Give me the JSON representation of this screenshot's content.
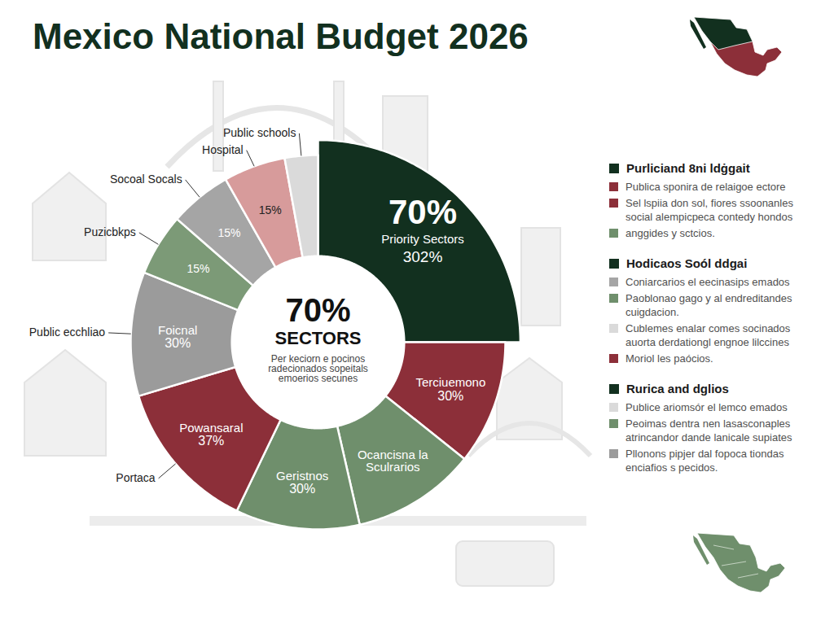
{
  "chart_data": {
    "type": "pie",
    "title": "Mexico National Budget 2026",
    "categories": [
      "Priority Sectors",
      "Terciuemono",
      "Ocancisna la Sculrarios",
      "Geristnos",
      "Powansaral",
      "Foicnal",
      null,
      null,
      null,
      null
    ],
    "values": [
      70,
      30,
      30,
      30,
      37,
      30,
      15,
      15,
      15,
      8
    ],
    "value_labels": [
      "70%",
      "30%",
      null,
      "30%",
      "37%",
      "30%",
      "15%",
      "15%",
      "15%",
      null
    ],
    "secondary_labels": [
      "302%",
      null,
      null,
      null,
      null,
      null,
      null,
      null,
      null,
      null
    ],
    "callouts": [
      null,
      null,
      null,
      null,
      "Portaca",
      "Public ecchliao",
      "Puzicbkps",
      "Socoal Socals",
      "Hospital",
      "Public schools"
    ],
    "colors": [
      "#12301f",
      "#8c2f39",
      "#6f8f6c",
      "#6f8f6c",
      "#8c2f39",
      "#9b9b9b",
      "#7c9a77",
      "#a5a5a5",
      "#d79b9b",
      "#dadada"
    ],
    "data_labels": true,
    "center_text": {
      "value": "70%",
      "label": "SECTORS",
      "note": "Per keciorn e pocinos radecionados sopeitals emoerios secunes"
    },
    "legend": "right",
    "legend_groups": [
      {
        "title": "Purliciand 8ni ldġgait",
        "color": "#12301f",
        "items": [
          {
            "text": "Publica sponira de relaigoe ectore",
            "color": "#8c2f39"
          },
          {
            "text": "Sel lspiia don sol, fiores ssoonanles social alempicpeca contedy hondos",
            "color": "#8c2f39"
          },
          {
            "text": "anggides y sctcios.",
            "color": "#6f8f6c"
          }
        ]
      },
      {
        "title": "Hodicaos Soól ddgai",
        "color": "#12301f",
        "items": [
          {
            "text": "Coniarcarios el eecinasips emados",
            "color": "#a5a5a5"
          },
          {
            "text": "Paoblonao gago y al endreditandes cuigdacion.",
            "color": "#6f8f6c"
          },
          {
            "text": "Cublemes enalar comes socinados auorta derdationgl engnoe lilccines",
            "color": "#dadada"
          },
          {
            "text": "Moriol les paócios.",
            "color": "#8c2f39"
          }
        ]
      },
      {
        "title": "Rurica and dglios",
        "color": "#12301f",
        "items": [
          {
            "text": "Publice ariomsór el lemco emados",
            "color": "#dadada"
          },
          {
            "text": "Peoimas dentra nen lasasconaples atrincandor dande lanicale supiates",
            "color": "#6f8f6c"
          },
          {
            "text": "Pllonons pipjer dal fopoca tiondas enciafios s pecidos.",
            "color": "#9b9b9b"
          }
        ]
      }
    ]
  }
}
